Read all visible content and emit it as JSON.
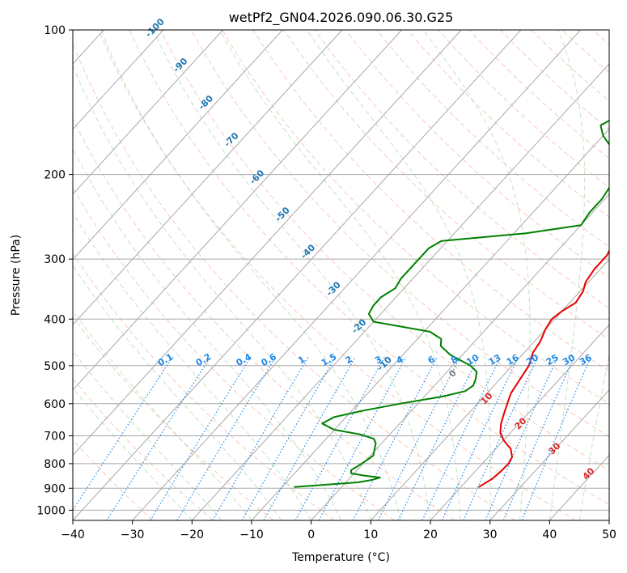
{
  "chart_data": {
    "type": "line",
    "title": "wetPf2_GN04.2026.090.06.30.G25",
    "xlabel": "Temperature (°C)",
    "ylabel": "Pressure (hPa)",
    "xlim": [
      -40,
      50
    ],
    "ylim": [
      1050,
      100
    ],
    "y_scale": "log",
    "x_ticks": [
      -40,
      -30,
      -20,
      -10,
      0,
      10,
      20,
      30,
      40,
      50
    ],
    "x_tick_labels": [
      "−40",
      "−30",
      "−20",
      "−10",
      "0",
      "10",
      "20",
      "30",
      "40",
      "50"
    ],
    "y_ticks": [
      100,
      200,
      300,
      400,
      500,
      600,
      700,
      800,
      900,
      1000
    ],
    "y_tick_labels": [
      "100",
      "200",
      "300",
      "400",
      "500",
      "600",
      "700",
      "800",
      "900",
      "1000"
    ],
    "grid": true,
    "series": [
      {
        "name": "Temperature",
        "color": "#e60000",
        "points": [
          [
            23,
            895
          ],
          [
            24,
            860
          ],
          [
            24.3,
            830
          ],
          [
            24.4,
            800
          ],
          [
            24,
            775
          ],
          [
            22.5,
            745
          ],
          [
            20,
            715
          ],
          [
            18.3,
            690
          ],
          [
            17,
            660
          ],
          [
            16,
            630
          ],
          [
            15,
            600
          ],
          [
            14,
            570
          ],
          [
            13.5,
            540
          ],
          [
            12.8,
            500
          ],
          [
            11.5,
            470
          ],
          [
            11,
            445
          ],
          [
            10,
            420
          ],
          [
            9.5,
            400
          ],
          [
            10,
            385
          ],
          [
            11,
            370
          ],
          [
            10.5,
            350
          ],
          [
            9.5,
            335
          ],
          [
            9,
            315
          ],
          [
            9,
            295
          ],
          [
            8,
            275
          ],
          [
            6.5,
            255
          ],
          [
            4,
            235
          ],
          [
            2,
            215
          ],
          [
            0,
            200
          ],
          [
            -1,
            190
          ],
          [
            -1,
            185
          ],
          [
            0.5,
            180
          ],
          [
            3,
            173
          ],
          [
            5,
            165
          ],
          [
            6,
            157
          ],
          [
            7,
            150
          ],
          [
            8,
            142
          ],
          [
            9.5,
            134
          ],
          [
            10.5,
            126
          ],
          [
            11.5,
            118
          ],
          [
            12,
            112
          ],
          [
            12.5,
            106
          ],
          [
            13.5,
            100
          ]
        ]
      },
      {
        "name": "Dewpoint",
        "color": "#008000",
        "points": [
          [
            -8,
            895
          ],
          [
            -3,
            885
          ],
          [
            2,
            875
          ],
          [
            4,
            865
          ],
          [
            5,
            855
          ],
          [
            2,
            847
          ],
          [
            -0.5,
            838
          ],
          [
            -1,
            825
          ],
          [
            -0.5,
            810
          ],
          [
            0,
            790
          ],
          [
            0.5,
            770
          ],
          [
            0,
            755
          ],
          [
            -0.5,
            740
          ],
          [
            -1,
            725
          ],
          [
            -2,
            710
          ],
          [
            -5,
            695
          ],
          [
            -10,
            680
          ],
          [
            -13,
            660
          ],
          [
            -12,
            640
          ],
          [
            -8,
            620
          ],
          [
            -3,
            600
          ],
          [
            3,
            580
          ],
          [
            6,
            565
          ],
          [
            6.5,
            550
          ],
          [
            6,
            535
          ],
          [
            5,
            515
          ],
          [
            3,
            500
          ],
          [
            -2,
            475
          ],
          [
            -5,
            455
          ],
          [
            -6,
            440
          ],
          [
            -9,
            425
          ],
          [
            -20,
            405
          ],
          [
            -22,
            390
          ],
          [
            -22.5,
            375
          ],
          [
            -22.5,
            360
          ],
          [
            -21.5,
            345
          ],
          [
            -22,
            330
          ],
          [
            -22,
            315
          ],
          [
            -22,
            300
          ],
          [
            -22,
            285
          ],
          [
            -21,
            275
          ],
          [
            -8,
            265
          ],
          [
            0,
            255
          ],
          [
            -0.5,
            240
          ],
          [
            -0.5,
            225
          ],
          [
            -1,
            213
          ],
          [
            -2,
            203
          ],
          [
            -3,
            193
          ],
          [
            -4,
            185
          ],
          [
            -6,
            178
          ],
          [
            -8,
            172
          ],
          [
            -10,
            166
          ],
          [
            -11,
            162
          ],
          [
            -12,
            158
          ],
          [
            -11,
            153
          ],
          [
            -9,
            146
          ],
          [
            -8,
            140
          ],
          [
            -7.5,
            134
          ],
          [
            -5,
            124
          ],
          [
            -2,
            115
          ],
          [
            -1,
            108
          ],
          [
            -0.5,
            100
          ]
        ]
      }
    ],
    "isotherm_labels": [
      "-100",
      "-90",
      "-80",
      "-70",
      "-60",
      "-50",
      "-40",
      "-30",
      "-20",
      "-10"
    ],
    "mixing_ratio_labels": [
      "0.1",
      "0.2",
      "0.4",
      "0.6",
      "1",
      "1.5",
      "2",
      "3",
      "4",
      "6",
      "8",
      "10",
      "13",
      "16",
      "20",
      "25",
      "30",
      "36"
    ],
    "moist_adiabat_labels": [
      "0",
      "10",
      "20",
      "30",
      "40"
    ]
  }
}
